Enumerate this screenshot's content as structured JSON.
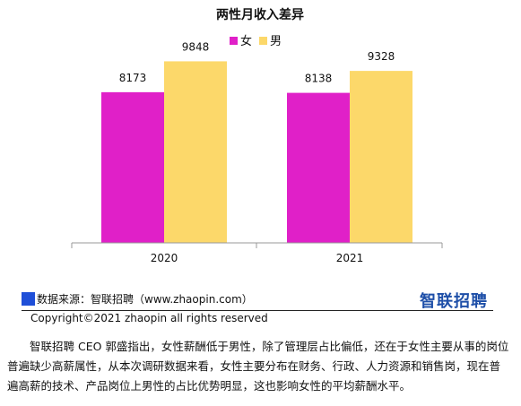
{
  "chart_data": {
    "type": "bar",
    "title": "两性月收入差异",
    "categories": [
      "2020",
      "2021"
    ],
    "series": [
      {
        "name": "女",
        "values": [
          8173,
          8138
        ],
        "color": "#e020c8"
      },
      {
        "name": "男",
        "values": [
          9848,
          9328
        ],
        "color": "#fcd86a"
      }
    ],
    "ylim": [
      0,
      10500
    ],
    "grid": false,
    "legend": "top-center"
  },
  "source": {
    "text": "数据来源：智联招聘（www.zhaopin.com）",
    "logo": "智联招聘",
    "copyright": "Copyright©2021 zhaopin all rights reserved"
  },
  "paragraph": "智联招聘 CEO 郭盛指出，女性薪酬低于男性，除了管理层占比偏低，还在于女性主要从事的岗位普遍缺少高薪属性，从本次调研数据来看，女性主要分布在财务、行政、人力资源和销售岗，现在普遍高薪的技术、产品岗位上男性的占比优势明显，这也影响女性的平均薪酬水平。"
}
